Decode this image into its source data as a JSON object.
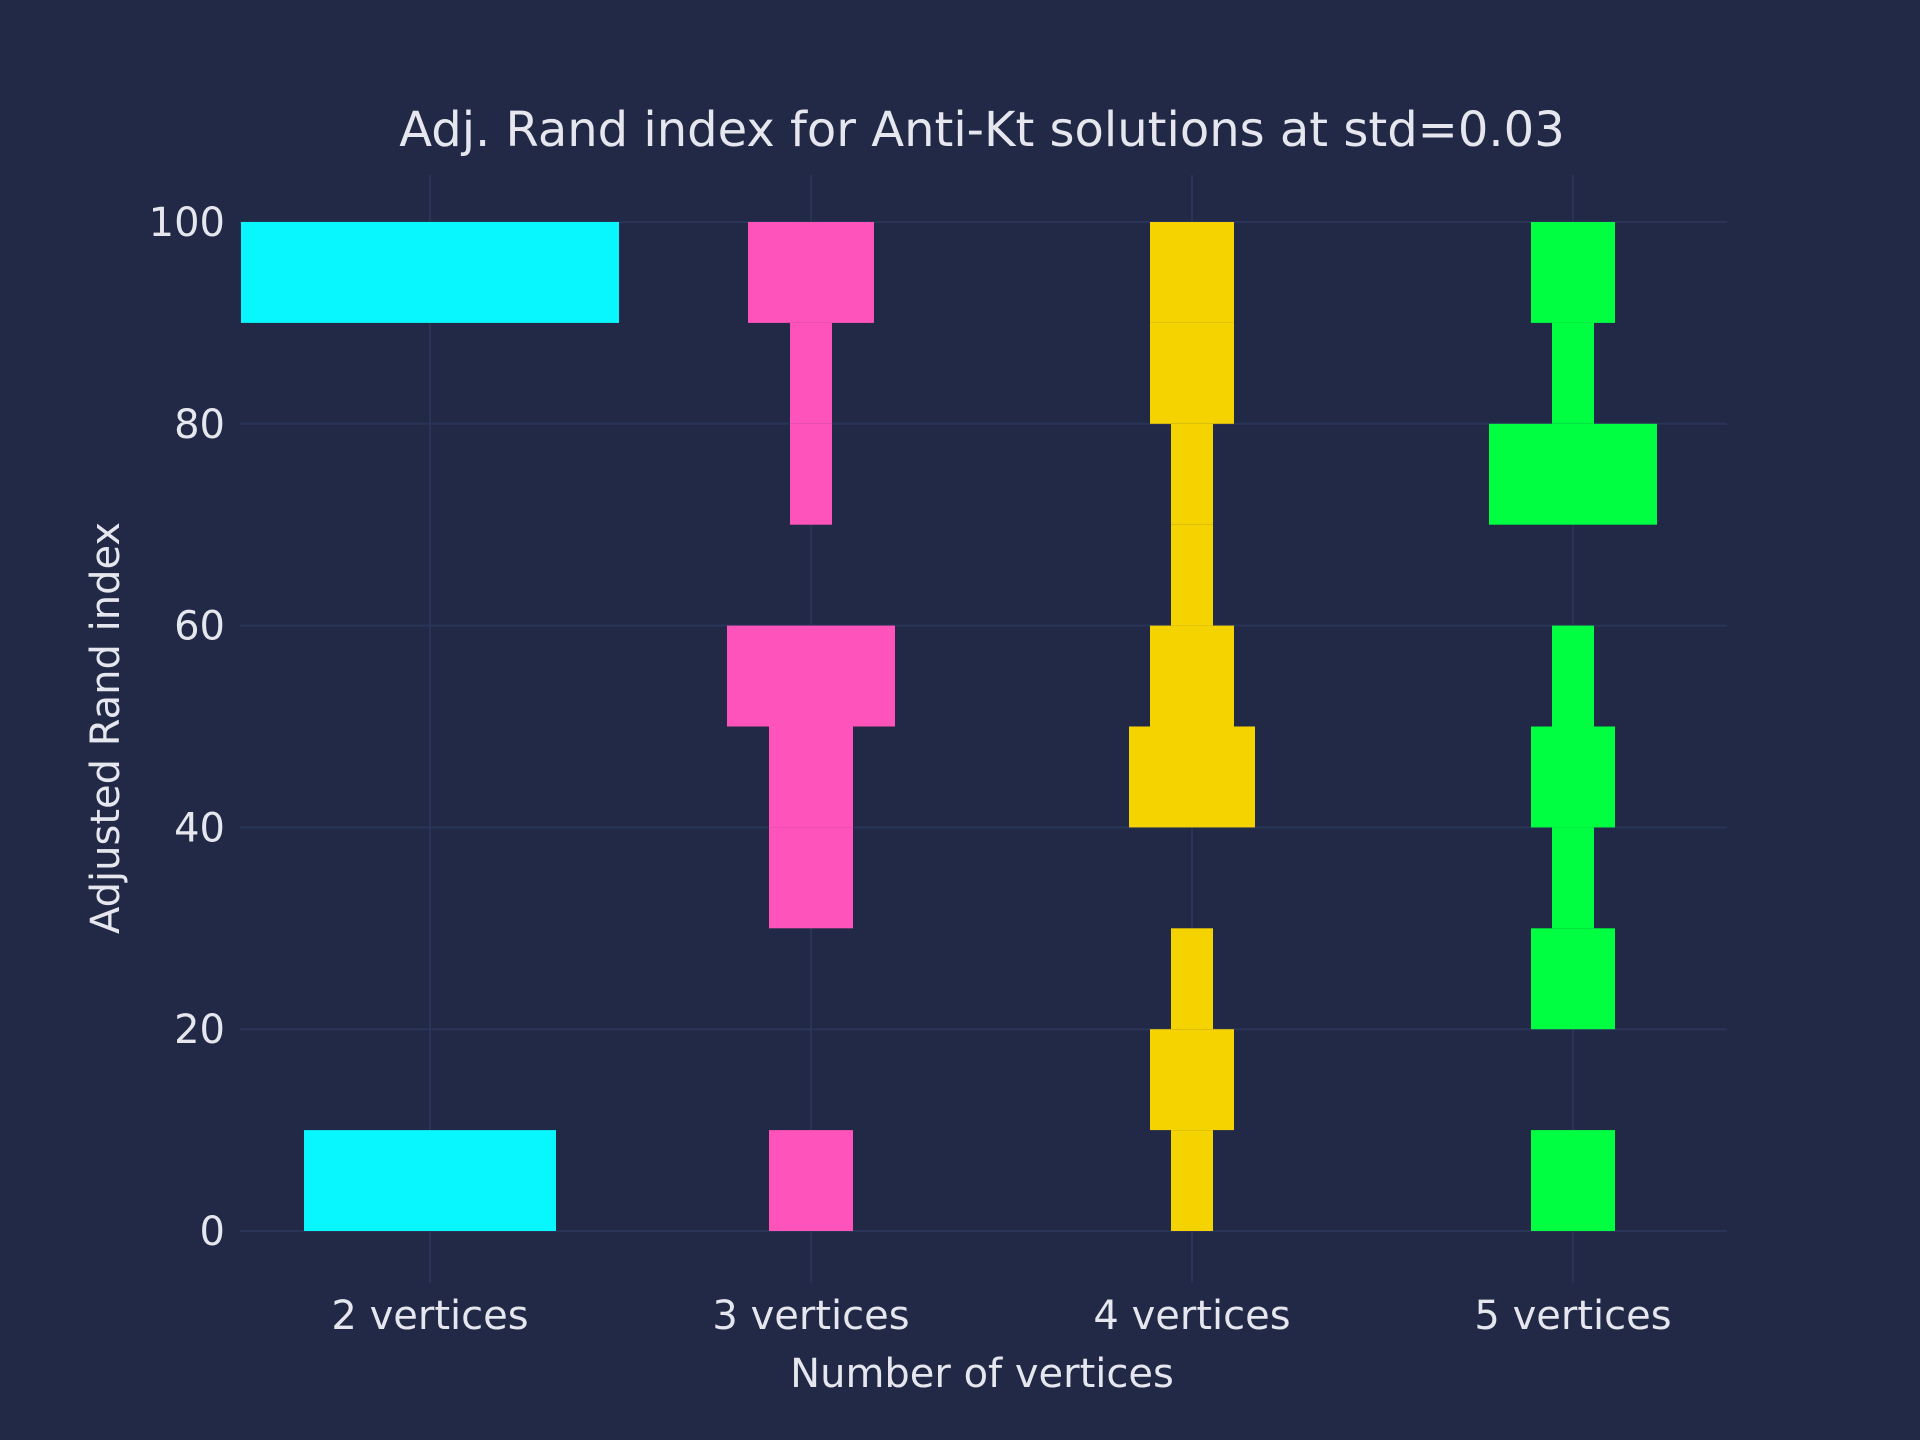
{
  "chart_data": {
    "type": "bar",
    "subtype": "histogram-violin",
    "title": "Adj. Rand index for Anti-Kt solutions at std=0.03",
    "xlabel": "Number of vertices",
    "ylabel": "Adjusted Rand index",
    "categories": [
      "2 vertices",
      "3 vertices",
      "4 vertices",
      "5 vertices"
    ],
    "ylim": [
      -5,
      105
    ],
    "yticks": [
      "0",
      "20",
      "40",
      "60",
      "80",
      "100"
    ],
    "ytick_values": [
      0,
      20,
      40,
      60,
      80,
      100
    ],
    "grid": true,
    "bin_edges": [
      0,
      10,
      20,
      30,
      40,
      50,
      60,
      70,
      80,
      90,
      100
    ],
    "note_counts": "relative bin counts per category (bins 0-10 ... 90-100)",
    "series": [
      {
        "category": "2 vertices",
        "color": "#08f7fe",
        "counts": [
          6,
          0,
          0,
          0,
          0,
          0,
          0,
          0,
          0,
          9
        ]
      },
      {
        "category": "3 vertices",
        "color": "#fe53bb",
        "counts": [
          2,
          0,
          0,
          2,
          2,
          4,
          0,
          1,
          1,
          3
        ]
      },
      {
        "category": "4 vertices",
        "color": "#f5d300",
        "counts": [
          1,
          2,
          1,
          0,
          3,
          2,
          1,
          1,
          2,
          2
        ]
      },
      {
        "category": "5 vertices",
        "color": "#00ff41",
        "counts": [
          2,
          0,
          2,
          1,
          2,
          1,
          0,
          4,
          1,
          2
        ]
      }
    ]
  }
}
